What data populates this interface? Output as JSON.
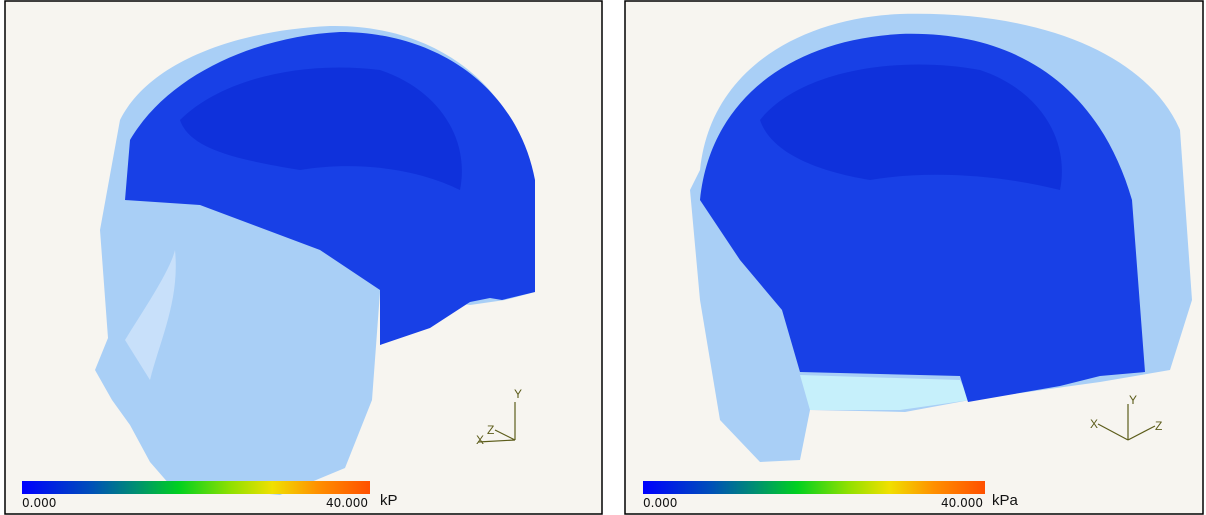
{
  "panels": [
    {
      "colorbar": {
        "min": "0.000",
        "max": "40.000",
        "unit": "kP"
      },
      "axes": {
        "x": "X",
        "y": "Y",
        "z": "Z"
      }
    },
    {
      "colorbar": {
        "min": "0.000",
        "max": "40.000",
        "unit": "kPa"
      },
      "axes": {
        "x": "X",
        "y": "Y",
        "z": "Z"
      }
    }
  ]
}
